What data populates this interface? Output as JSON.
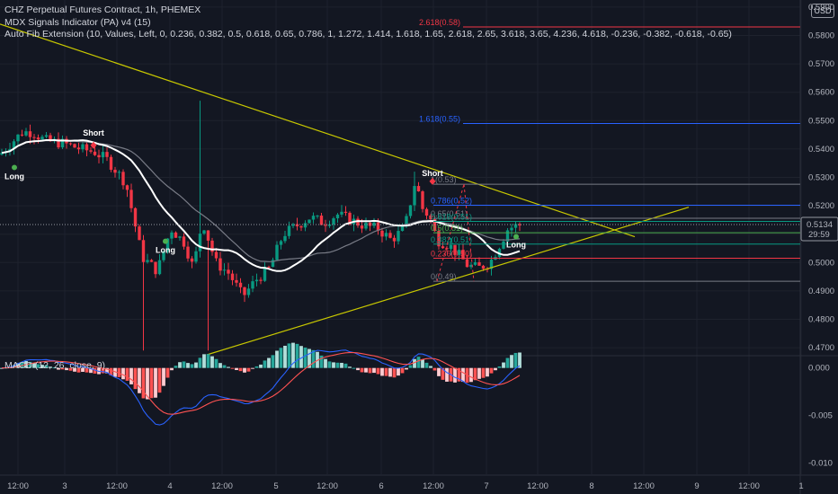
{
  "header": {
    "title": "CHZ Perpetual Futures Contract, 1h, PHEMEX",
    "indicator1": "MDX Signals Indicator (PA) v4 (15)",
    "indicator2": "Auto Fib Extension (10, Values, Left, 0, 0.236, 0.382, 0.5, 0.618, 0.65, 0.786, 1, 1.272, 1.414, 1.618, 1.65, 2.618, 2.65, 3.618, 3.65, 4.236, 4.618, -0.236, -0.382, -0.618, -0.65)",
    "currency": "USD"
  },
  "macd": {
    "label": "MACD (12, 26, close, 9)",
    "ticks": [
      "0.000",
      "-0.005",
      "-0.010"
    ]
  },
  "price_axis": {
    "ticks": [
      "0.5900",
      "0.5800",
      "0.5700",
      "0.5600",
      "0.5500",
      "0.5400",
      "0.5300",
      "0.5200",
      "0.5100",
      "0.5000",
      "0.4900",
      "0.4800",
      "0.4700"
    ],
    "last_price": "0.5134",
    "countdown": "29:59"
  },
  "time_axis": {
    "ticks": [
      "12:00",
      "3",
      "12:00",
      "4",
      "12:00",
      "5",
      "12:00",
      "6",
      "12:00",
      "7",
      "12:00",
      "8",
      "12:00",
      "9",
      "12:00",
      "1"
    ]
  },
  "signals": [
    "Short",
    "Long",
    "Long",
    "Short",
    "Long"
  ],
  "fib_levels": [
    {
      "label": "2.618(0.58)",
      "price": 0.583,
      "color": "#f23645"
    },
    {
      "label": "1.618(0.55)",
      "price": 0.549,
      "color": "#2962ff"
    },
    {
      "label": "1(0.53)",
      "price": 0.5276,
      "color": "#787b86"
    },
    {
      "label": "0.786(0.52)",
      "price": 0.5202,
      "color": "#2962ff"
    },
    {
      "label": "0.65(0.51)",
      "price": 0.5156,
      "color": "#787b86"
    },
    {
      "label": "0.618(0.51)",
      "price": 0.5145,
      "color": "#089981"
    },
    {
      "label": "0.5(0.51)",
      "price": 0.5105,
      "color": "#4caf50"
    },
    {
      "label": "0.382(0.51)",
      "price": 0.5065,
      "color": "#089981"
    },
    {
      "label": "0.236(0.50)",
      "price": 0.5015,
      "color": "#f23645"
    },
    {
      "label": "0(0.49)",
      "price": 0.4934,
      "color": "#787b86"
    }
  ],
  "colors": {
    "up": "#089981",
    "down": "#f23645",
    "ma": "#ffffff",
    "ma2": "#787b86",
    "trend": "#c8c800",
    "macd": "#2962ff",
    "signal": "#ff5252"
  },
  "chart_data": {
    "type": "candlestick",
    "title": "CHZ Perpetual Futures Contract, 1h, PHEMEX",
    "ylim": [
      0.4675,
      0.5925
    ],
    "last_price": 0.5134,
    "candle_keypoints": [
      [
        0,
        0.538
      ],
      [
        12,
        0.542
      ],
      [
        25,
        0.546
      ],
      [
        36,
        0.546
      ],
      [
        50,
        0.543
      ],
      [
        70,
        0.542
      ],
      [
        90,
        0.54
      ],
      [
        105,
        0.539
      ],
      [
        120,
        0.536
      ],
      [
        140,
        0.528
      ],
      [
        158,
        0.502
      ],
      [
        175,
        0.497
      ],
      [
        190,
        0.512
      ],
      [
        205,
        0.507
      ],
      [
        215,
        0.498
      ],
      [
        225,
        0.515
      ],
      [
        240,
        0.5
      ],
      [
        255,
        0.496
      ],
      [
        270,
        0.488
      ],
      [
        285,
        0.494
      ],
      [
        300,
        0.498
      ],
      [
        315,
        0.51
      ],
      [
        330,
        0.513
      ],
      [
        345,
        0.516
      ],
      [
        360,
        0.514
      ],
      [
        375,
        0.517
      ],
      [
        390,
        0.515
      ],
      [
        405,
        0.513
      ],
      [
        420,
        0.512
      ],
      [
        435,
        0.508
      ],
      [
        450,
        0.512
      ],
      [
        462,
        0.529
      ],
      [
        470,
        0.519
      ],
      [
        478,
        0.516
      ],
      [
        486,
        0.508
      ],
      [
        500,
        0.506
      ],
      [
        512,
        0.502
      ],
      [
        520,
        0.499
      ],
      [
        532,
        0.498
      ],
      [
        545,
        0.5
      ],
      [
        555,
        0.506
      ],
      [
        565,
        0.512
      ],
      [
        575,
        0.513
      ],
      [
        580,
        0.5134
      ]
    ],
    "macd_ylim": [
      -0.0112,
      0.0012
    ],
    "fib_extension": [
      2.618,
      1.618,
      1,
      0.786,
      0.65,
      0.618,
      0.5,
      0.382,
      0.236,
      0
    ]
  }
}
